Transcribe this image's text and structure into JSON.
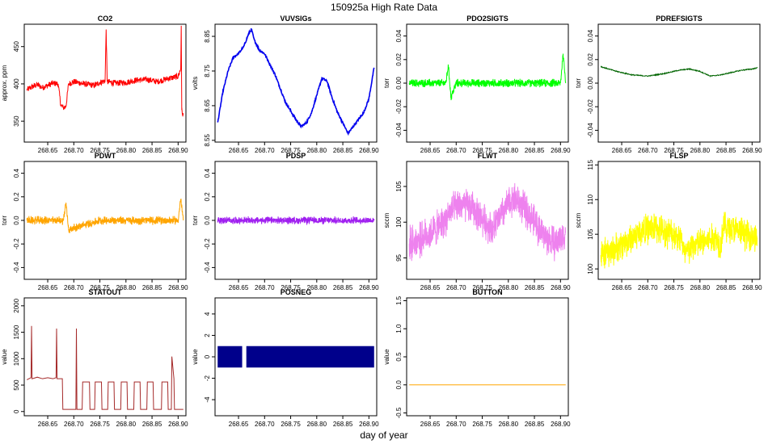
{
  "page": {
    "title": "150925a   High Rate Data",
    "xlabel": "day of year"
  },
  "chart_data": [
    {
      "type": "line",
      "title": "CO2",
      "ylabel": "approx. ppm",
      "color": "#ff0000",
      "xlim": [
        268.605,
        268.915
      ],
      "ylim": [
        322,
        480
      ],
      "yticks": [
        350,
        400,
        450
      ],
      "ytick_labels": [
        "350",
        "400",
        "450"
      ],
      "xticks": [
        268.65,
        268.7,
        268.75,
        268.8,
        268.85,
        268.9
      ],
      "xtick_labels": [
        "268.65",
        "268.70",
        "268.75",
        "268.80",
        "268.85",
        "268.90"
      ],
      "x": [
        268.61,
        268.62,
        268.63,
        268.64,
        268.65,
        268.66,
        268.67,
        268.675,
        268.68,
        268.685,
        268.69,
        268.7,
        268.72,
        268.74,
        268.75,
        268.76,
        268.762,
        268.764,
        268.78,
        268.8,
        268.82,
        268.84,
        268.86,
        268.88,
        268.9,
        268.905,
        268.906,
        268.907,
        268.908,
        268.91
      ],
      "y": [
        392,
        396,
        399,
        395,
        398,
        401,
        400,
        372,
        368,
        370,
        400,
        403,
        400,
        398,
        402,
        404,
        473,
        403,
        401,
        402,
        405,
        406,
        403,
        407,
        410,
        420,
        478,
        365,
        360,
        359
      ]
    },
    {
      "type": "line",
      "title": "VUVSIGs",
      "ylabel": "volts",
      "color": "#0000ee",
      "xlim": [
        268.605,
        268.915
      ],
      "ylim": [
        8.545,
        8.885
      ],
      "yticks": [
        8.55,
        8.65,
        8.75,
        8.85
      ],
      "ytick_labels": [
        "8.55",
        "8.65",
        "8.75",
        "8.85"
      ],
      "xticks": [
        268.65,
        268.7,
        268.75,
        268.8,
        268.85,
        268.9
      ],
      "xtick_labels": [
        "268.65",
        "268.70",
        "268.75",
        "268.80",
        "268.85",
        "268.90"
      ],
      "x": [
        268.61,
        268.62,
        268.63,
        268.64,
        268.65,
        268.66,
        268.67,
        268.675,
        268.68,
        268.69,
        268.7,
        268.72,
        268.74,
        268.76,
        268.77,
        268.78,
        268.79,
        268.8,
        268.81,
        268.82,
        268.83,
        268.84,
        268.85,
        268.86,
        268.87,
        268.88,
        268.89,
        268.9,
        268.91
      ],
      "y": [
        8.6,
        8.69,
        8.75,
        8.79,
        8.8,
        8.82,
        8.86,
        8.87,
        8.84,
        8.81,
        8.8,
        8.74,
        8.66,
        8.61,
        8.59,
        8.6,
        8.63,
        8.68,
        8.73,
        8.72,
        8.67,
        8.63,
        8.6,
        8.57,
        8.59,
        8.61,
        8.63,
        8.67,
        8.76
      ]
    },
    {
      "type": "line",
      "title": "PDO2SIGTS",
      "ylabel": "torr",
      "color": "#00ff00",
      "xlim": [
        268.605,
        268.915
      ],
      "ylim": [
        -0.05,
        0.05
      ],
      "yticks": [
        -0.04,
        -0.02,
        0.0,
        0.02,
        0.04
      ],
      "ytick_labels": [
        "-0.04",
        "-0.02",
        "0.00",
        "0.02",
        "0.04"
      ],
      "xticks": [
        268.65,
        268.7,
        268.75,
        268.8,
        268.85,
        268.9
      ],
      "xtick_labels": [
        "268.65",
        "268.70",
        "268.75",
        "268.80",
        "268.85",
        "268.90"
      ],
      "x": [
        268.61,
        268.64,
        268.67,
        268.68,
        268.685,
        268.69,
        268.7,
        268.75,
        268.8,
        268.85,
        268.88,
        268.9,
        268.905,
        268.91
      ],
      "y": [
        0.0,
        0.0,
        0.0,
        0.0,
        0.015,
        -0.012,
        0.0,
        0.0,
        0.0,
        0.0,
        0.0,
        0.0,
        0.025,
        0.0
      ],
      "noise": 0.004
    },
    {
      "type": "line",
      "title": "PDREFSIGTS",
      "ylabel": "torr",
      "color": "#006400",
      "xlim": [
        268.605,
        268.915
      ],
      "ylim": [
        -0.05,
        0.05
      ],
      "yticks": [
        -0.04,
        -0.02,
        0.0,
        0.02,
        0.04
      ],
      "ytick_labels": [
        "-0.04",
        "-0.02",
        "0.00",
        "0.02",
        "0.04"
      ],
      "xticks": [
        268.65,
        268.7,
        268.75,
        268.8,
        268.85,
        268.9
      ],
      "xtick_labels": [
        "268.65",
        "268.70",
        "268.75",
        "268.80",
        "268.85",
        "268.90"
      ],
      "x": [
        268.61,
        268.64,
        268.67,
        268.7,
        268.73,
        268.76,
        268.78,
        268.8,
        268.82,
        268.84,
        268.86,
        268.88,
        268.9,
        268.91
      ],
      "y": [
        0.014,
        0.01,
        0.007,
        0.006,
        0.008,
        0.011,
        0.012,
        0.01,
        0.006,
        0.007,
        0.009,
        0.011,
        0.012,
        0.013
      ]
    },
    {
      "type": "line",
      "title": "PDWT",
      "ylabel": "torr",
      "color": "#ffa500",
      "xlim": [
        268.605,
        268.915
      ],
      "ylim": [
        -0.5,
        0.5
      ],
      "yticks": [
        -0.4,
        -0.2,
        0.0,
        0.2,
        0.4
      ],
      "ytick_labels": [
        "-0.4",
        "-0.2",
        "0.0",
        "0.2",
        "0.4"
      ],
      "xticks": [
        268.65,
        268.7,
        268.75,
        268.8,
        268.85,
        268.9
      ],
      "xtick_labels": [
        "268.65",
        "268.70",
        "268.75",
        "268.80",
        "268.85",
        "268.90"
      ],
      "x": [
        268.61,
        268.65,
        268.67,
        268.68,
        268.685,
        268.69,
        268.75,
        268.8,
        268.85,
        268.9,
        268.905,
        268.91
      ],
      "y": [
        0.0,
        0.0,
        0.0,
        0.0,
        0.15,
        -0.08,
        0.0,
        0.0,
        0.0,
        0.0,
        0.18,
        0.0
      ],
      "noise": 0.04
    },
    {
      "type": "line",
      "title": "PDSP",
      "ylabel": "torr",
      "color": "#a020f0",
      "xlim": [
        268.605,
        268.915
      ],
      "ylim": [
        -0.5,
        0.5
      ],
      "yticks": [
        -0.4,
        -0.2,
        0.0,
        0.2,
        0.4
      ],
      "ytick_labels": [
        "-0.4",
        "-0.2",
        "0.0",
        "0.2",
        "0.4"
      ],
      "xticks": [
        268.65,
        268.7,
        268.75,
        268.8,
        268.85,
        268.9
      ],
      "xtick_labels": [
        "268.65",
        "268.70",
        "268.75",
        "268.80",
        "268.85",
        "268.90"
      ],
      "x": [
        268.61,
        268.65,
        268.68,
        268.7,
        268.75,
        268.8,
        268.85,
        268.9,
        268.91
      ],
      "y": [
        0.0,
        0.0,
        0.0,
        0.0,
        0.0,
        0.0,
        0.0,
        0.0,
        0.0
      ],
      "noise": 0.035
    },
    {
      "type": "line",
      "title": "FLWT",
      "ylabel": "sccm",
      "color": "#ee82ee",
      "xlim": [
        268.605,
        268.915
      ],
      "ylim": [
        92.0,
        108.5
      ],
      "yticks": [
        95,
        100,
        105
      ],
      "ytick_labels": [
        "95",
        "100",
        "105"
      ],
      "xticks": [
        268.65,
        268.7,
        268.75,
        268.8,
        268.85,
        268.9
      ],
      "xtick_labels": [
        "268.65",
        "268.70",
        "268.75",
        "268.80",
        "268.85",
        "268.90"
      ],
      "x": [
        268.61,
        268.63,
        268.65,
        268.67,
        268.69,
        268.71,
        268.73,
        268.75,
        268.77,
        268.79,
        268.81,
        268.83,
        268.85,
        268.87,
        268.89,
        268.91
      ],
      "y": [
        97.0,
        97.5,
        98.5,
        99.5,
        101.5,
        102.5,
        102.0,
        100.5,
        99.0,
        101.5,
        103.5,
        102.0,
        100.0,
        98.0,
        97.0,
        98.5
      ],
      "noise": 2.8
    },
    {
      "type": "line",
      "title": "FLSP",
      "ylabel": "sccm",
      "color": "#ffff00",
      "xlim": [
        268.605,
        268.915
      ],
      "ylim": [
        98.5,
        115.5
      ],
      "yticks": [
        100,
        105,
        110,
        115
      ],
      "ytick_labels": [
        "100",
        "105",
        "110",
        "115"
      ],
      "xticks": [
        268.65,
        268.7,
        268.75,
        268.8,
        268.85,
        268.9
      ],
      "xtick_labels": [
        "268.65",
        "268.70",
        "268.75",
        "268.80",
        "268.85",
        "268.90"
      ],
      "x": [
        268.61,
        268.63,
        268.65,
        268.67,
        268.69,
        268.71,
        268.73,
        268.75,
        268.765,
        268.77,
        268.79,
        268.81,
        268.83,
        268.84,
        268.845,
        268.85,
        268.87,
        268.89,
        268.91
      ],
      "y": [
        102.0,
        102.5,
        103.5,
        104.5,
        105.5,
        106.0,
        105.5,
        105.0,
        104.5,
        102.0,
        103.5,
        104.0,
        104.5,
        103.5,
        106.5,
        106.0,
        105.5,
        105.0,
        104.5
      ],
      "noise": 2.6
    },
    {
      "type": "line",
      "title": "STATOUT",
      "ylabel": "value",
      "color": "#a52a2a",
      "xlim": [
        268.605,
        268.915
      ],
      "ylim": [
        -80,
        2150
      ],
      "yticks": [
        0,
        500,
        1000,
        1500,
        2000
      ],
      "ytick_labels": [
        "0",
        "500",
        "1000",
        "1500",
        "2000"
      ],
      "xticks": [
        268.65,
        268.7,
        268.75,
        268.8,
        268.85,
        268.9
      ],
      "xtick_labels": [
        "268.65",
        "268.70",
        "268.75",
        "268.80",
        "268.85",
        "268.90"
      ],
      "x": [
        268.61,
        268.618,
        268.619,
        268.62,
        268.63,
        268.64,
        268.65,
        268.66,
        268.666,
        268.667,
        268.668,
        268.678,
        268.679,
        268.69,
        268.7,
        268.704,
        268.705,
        268.706,
        268.716,
        268.717,
        268.73,
        268.731,
        268.74,
        268.741,
        268.753,
        268.754,
        268.765,
        268.766,
        268.777,
        268.778,
        268.79,
        268.791,
        268.802,
        268.803,
        268.815,
        268.816,
        268.827,
        268.828,
        268.84,
        268.841,
        268.852,
        268.853,
        268.868,
        268.869,
        268.88,
        268.881,
        268.887,
        268.888,
        268.892,
        268.893,
        268.91
      ],
      "y": [
        600,
        640,
        1620,
        620,
        650,
        620,
        640,
        620,
        640,
        1570,
        620,
        620,
        40,
        40,
        40,
        40,
        1570,
        40,
        40,
        560,
        560,
        40,
        40,
        560,
        560,
        40,
        40,
        560,
        560,
        40,
        40,
        560,
        560,
        40,
        40,
        560,
        560,
        40,
        40,
        560,
        560,
        40,
        40,
        560,
        560,
        40,
        40,
        1040,
        620,
        40,
        40
      ]
    },
    {
      "type": "area",
      "title": "POSNEG",
      "ylabel": "value",
      "color": "#00008b",
      "xlim": [
        268.605,
        268.915
      ],
      "ylim": [
        -5.5,
        5.5
      ],
      "yticks": [
        -4,
        -2,
        0,
        2,
        4
      ],
      "ytick_labels": [
        "-4",
        "-2",
        "0",
        "2",
        "4"
      ],
      "xticks": [
        268.65,
        268.7,
        268.75,
        268.8,
        268.85,
        268.9
      ],
      "xtick_labels": [
        "268.65",
        "268.70",
        "268.75",
        "268.80",
        "268.85",
        "268.90"
      ],
      "bands": [
        {
          "x0": 268.61,
          "x1": 268.657,
          "ymin": -1,
          "ymax": 1
        },
        {
          "x0": 268.665,
          "x1": 268.91,
          "ymin": -1,
          "ymax": 1
        }
      ]
    },
    {
      "type": "line",
      "title": "BUTTON",
      "ylabel": "value",
      "color": "#ffa500",
      "xlim": [
        268.605,
        268.915
      ],
      "ylim": [
        -0.55,
        1.55
      ],
      "yticks": [
        -0.5,
        0.0,
        0.5,
        1.0,
        1.5
      ],
      "ytick_labels": [
        "-0.5",
        "0.0",
        "0.5",
        "1.0",
        "1.5"
      ],
      "xticks": [
        268.65,
        268.7,
        268.75,
        268.8,
        268.85,
        268.9
      ],
      "xtick_labels": [
        "268.65",
        "268.70",
        "268.75",
        "268.80",
        "268.85",
        "268.90"
      ],
      "x": [
        268.61,
        268.91
      ],
      "y": [
        0.0,
        0.0
      ]
    }
  ]
}
